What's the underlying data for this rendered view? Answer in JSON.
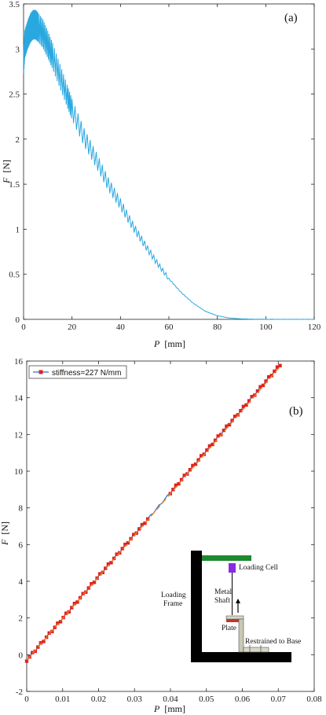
{
  "chart_data": [
    {
      "panel_label": "(a)",
      "type": "line",
      "xlabel": "P [mm]",
      "xlabel_symbol": "P",
      "xlabel_unit": "[mm]",
      "ylabel": "F [N]",
      "ylabel_symbol": "F",
      "ylabel_unit": "[N]",
      "xlim": [
        0,
        120
      ],
      "ylim": [
        0,
        3.5
      ],
      "xticks": [
        0,
        20,
        40,
        60,
        80,
        100,
        120
      ],
      "yticks": [
        0,
        0.5,
        1,
        1.5,
        2,
        2.5,
        3,
        3.5
      ],
      "tick_labels_x": [
        "0",
        "20",
        "40",
        "60",
        "80",
        "100",
        "120"
      ],
      "tick_labels_y": [
        "0",
        "0.5",
        "1",
        "1.5",
        "2",
        "2.5",
        "3",
        "3.5"
      ],
      "grid": false,
      "series": [
        {
          "color": "#29a8e0",
          "x": [
            0,
            0.5,
            1,
            2,
            3,
            4,
            5,
            6,
            8,
            10,
            12,
            15,
            18,
            20,
            25,
            30,
            35,
            40,
            45,
            50,
            55,
            60,
            65,
            70,
            75,
            80,
            85,
            90,
            95,
            100,
            110,
            120
          ],
          "y": [
            2.85,
            3.05,
            3.1,
            3.18,
            3.24,
            3.27,
            3.27,
            3.24,
            3.17,
            3.05,
            2.92,
            2.7,
            2.48,
            2.33,
            2.02,
            1.77,
            1.5,
            1.28,
            1.04,
            0.83,
            0.63,
            0.45,
            0.3,
            0.18,
            0.09,
            0.04,
            0.015,
            0.005,
            0.002,
            0.001,
            0.0,
            0.0
          ]
        }
      ]
    },
    {
      "panel_label": "(b)",
      "type": "scatter",
      "xlabel": "P [mm]",
      "xlabel_symbol": "P",
      "xlabel_unit": "[mm]",
      "ylabel": "F [N]",
      "ylabel_symbol": "F",
      "ylabel_unit": "[N]",
      "xlim": [
        0,
        0.08
      ],
      "ylim": [
        -2,
        16
      ],
      "xticks": [
        0,
        0.01,
        0.02,
        0.03,
        0.04,
        0.05,
        0.06,
        0.07,
        0.08
      ],
      "yticks": [
        -2,
        0,
        2,
        4,
        6,
        8,
        10,
        12,
        14,
        16
      ],
      "tick_labels_x": [
        "0",
        "0.01",
        "0.02",
        "0.03",
        "0.04",
        "0.05",
        "0.06",
        "0.07",
        "0.08"
      ],
      "tick_labels_y": [
        "-2",
        "0",
        "2",
        "4",
        "6",
        "8",
        "10",
        "12",
        "14",
        "16"
      ],
      "grid": false,
      "legend": {
        "position": "top-left",
        "entries": [
          "stiffness=227 N/mm"
        ]
      },
      "series": [
        {
          "name": "stiffness=227 N/mm",
          "style": "blue line with red square markers",
          "color": "#1f77d4",
          "marker_color": "#e02020",
          "x_range": [
            0,
            0.0705
          ],
          "y_range": [
            -0.3,
            15.8
          ]
        },
        {
          "style": "dashed linear fit",
          "color": "#e67e22",
          "x": [
            0,
            0.0705
          ],
          "y": [
            -0.3,
            15.7
          ]
        }
      ],
      "inset": {
        "labels": {
          "loading_cell": "Loading Cell",
          "loading_frame_line1": "Loading",
          "loading_frame_line2": "Frame",
          "metal_line1": "Metal",
          "metal_line2": "Shaft",
          "plate": "Plate",
          "restrained": "Restrained to Base"
        },
        "colors": {
          "frame": "#000000",
          "crossbar": "#1e8a2e",
          "loading_cell": "#8a2be2",
          "plate": "#c0392b",
          "shaft_block": "#c8c8b4"
        }
      }
    }
  ]
}
